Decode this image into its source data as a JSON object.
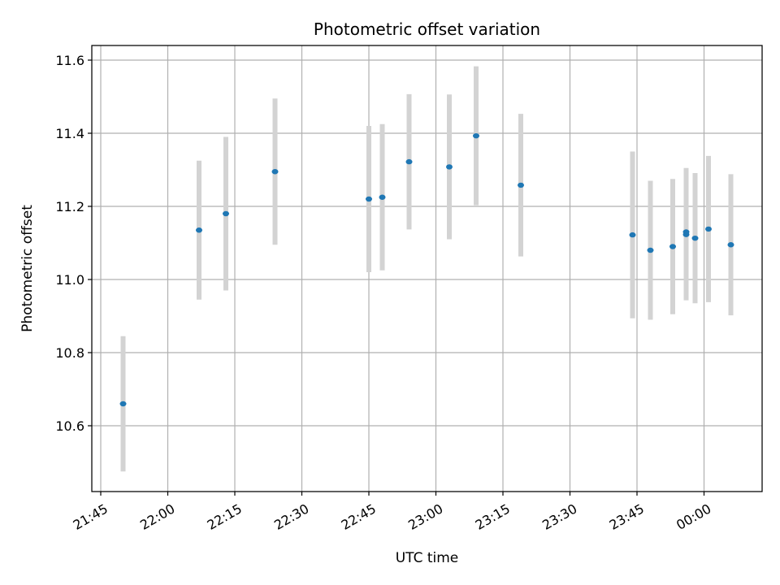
{
  "chart_data": {
    "type": "scatter",
    "title": "Photometric offset variation",
    "xlabel": "UTC time",
    "ylabel": "Photometric offset",
    "grid": true,
    "x_axis": {
      "kind": "time",
      "range": [
        "21:43",
        "00:13"
      ],
      "ticks": [
        "21:45",
        "22:00",
        "22:15",
        "22:30",
        "22:45",
        "23:00",
        "23:15",
        "23:30",
        "23:45",
        "00:00"
      ]
    },
    "y_axis": {
      "range": [
        10.42,
        11.64
      ],
      "ticks": [
        "10.6",
        "10.8",
        "11.0",
        "11.2",
        "11.4",
        "11.6"
      ]
    },
    "series": [
      {
        "marker_color": "#1f77b4",
        "errorbar_color": "#d3d3d3",
        "points": [
          {
            "x": "21:50",
            "y": 10.66,
            "yerr": 0.185
          },
          {
            "x": "22:07",
            "y": 11.135,
            "yerr": 0.19
          },
          {
            "x": "22:13",
            "y": 11.18,
            "yerr": 0.21
          },
          {
            "x": "22:24",
            "y": 11.295,
            "yerr": 0.2
          },
          {
            "x": "22:45",
            "y": 11.22,
            "yerr": 0.2
          },
          {
            "x": "22:48",
            "y": 11.225,
            "yerr": 0.2
          },
          {
            "x": "22:54",
            "y": 11.322,
            "yerr": 0.185
          },
          {
            "x": "23:03",
            "y": 11.308,
            "yerr": 0.198
          },
          {
            "x": "23:09",
            "y": 11.393,
            "yerr": 0.19
          },
          {
            "x": "23:19",
            "y": 11.258,
            "yerr": 0.195
          },
          {
            "x": "23:44",
            "y": 11.122,
            "yerr": 0.228
          },
          {
            "x": "23:48",
            "y": 11.08,
            "yerr": 0.19
          },
          {
            "x": "23:53",
            "y": 11.09,
            "yerr": 0.185
          },
          {
            "x": "23:56",
            "y": 11.123,
            "yerr": 0.18
          },
          {
            "x": "23:56",
            "y": 11.13,
            "yerr": 0.175
          },
          {
            "x": "23:58",
            "y": 11.113,
            "yerr": 0.178
          },
          {
            "x": "00:01",
            "y": 11.138,
            "yerr": 0.2
          },
          {
            "x": "00:06",
            "y": 11.095,
            "yerr": 0.193
          }
        ]
      }
    ]
  }
}
